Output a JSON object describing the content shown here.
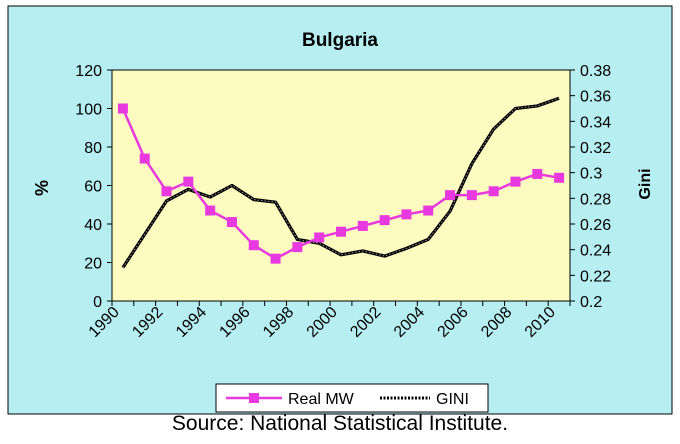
{
  "chart_data": {
    "type": "line",
    "title": "Bulgaria",
    "ylabel": "%",
    "y2label": "Gini",
    "xlabel": "",
    "x": [
      1990,
      1991,
      1992,
      1993,
      1994,
      1995,
      1996,
      1997,
      1998,
      1999,
      2000,
      2001,
      2002,
      2003,
      2004,
      2005,
      2006,
      2007,
      2008,
      2009,
      2010
    ],
    "xlim": [
      1990,
      2011
    ],
    "xticks": [
      "1990",
      "1992",
      "1994",
      "1996",
      "1998",
      "2000",
      "2002",
      "2004",
      "2006",
      "2008",
      "2010"
    ],
    "xtick_values": [
      1990,
      1992,
      1994,
      1996,
      1998,
      2000,
      2002,
      2004,
      2006,
      2008,
      2010
    ],
    "ylim": [
      0,
      120
    ],
    "yticks": [
      "0",
      "20",
      "40",
      "60",
      "80",
      "100",
      "120"
    ],
    "ytick_values": [
      0,
      20,
      40,
      60,
      80,
      100,
      120
    ],
    "y2lim": [
      0.2,
      0.38
    ],
    "y2ticks": [
      "0.2",
      "0.22",
      "0.24",
      "0.26",
      "0.28",
      "0.3",
      "0.32",
      "0.34",
      "0.36",
      "0.38"
    ],
    "y2tick_values": [
      0.2,
      0.22,
      0.24,
      0.26,
      0.28,
      0.3,
      0.32,
      0.34,
      0.36,
      0.38
    ],
    "series": [
      {
        "name": "Real MW",
        "axis": "left",
        "color": "#e838e0",
        "marker": "square",
        "x": [
          1990.5,
          1991.5,
          1992.5,
          1993.5,
          1994.5,
          1995.5,
          1996.5,
          1997.5,
          1998.5,
          1999.5,
          2000.5,
          2001.5,
          2002.5,
          2003.5,
          2004.5,
          2005.5,
          2006.5,
          2007.5,
          2008.5,
          2009.5,
          2010.5
        ],
        "values": [
          100,
          74,
          57,
          62,
          47,
          41,
          29,
          22,
          28,
          33,
          36,
          39,
          42,
          45,
          47,
          55,
          55,
          57,
          62,
          66,
          64
        ]
      },
      {
        "name": "GINI",
        "axis": "right",
        "color": "#000000",
        "marker": "none",
        "x": [
          1990.5,
          1991.5,
          1992.5,
          1993.5,
          1994.5,
          1995.5,
          1996.5,
          1997.5,
          1998.5,
          1999.5,
          2000.5,
          2001.5,
          2002.5,
          2003.5,
          2004.5,
          2005.5,
          2006.5,
          2007.5,
          2008.5,
          2009.5,
          2010.5
        ],
        "values": [
          0.226,
          0.252,
          0.278,
          0.287,
          0.281,
          0.29,
          0.279,
          0.277,
          0.248,
          0.245,
          0.236,
          0.239,
          0.235,
          0.241,
          0.248,
          0.27,
          0.307,
          0.334,
          0.35,
          0.352,
          0.358
        ]
      }
    ],
    "legend_position": "bottom"
  },
  "colors": {
    "frame_background": "#b6eef2",
    "plot_background": "#fdfbc0",
    "real_mw": "#e838e0",
    "gini": "#000000"
  },
  "source": "Source: National Statistical Institute."
}
